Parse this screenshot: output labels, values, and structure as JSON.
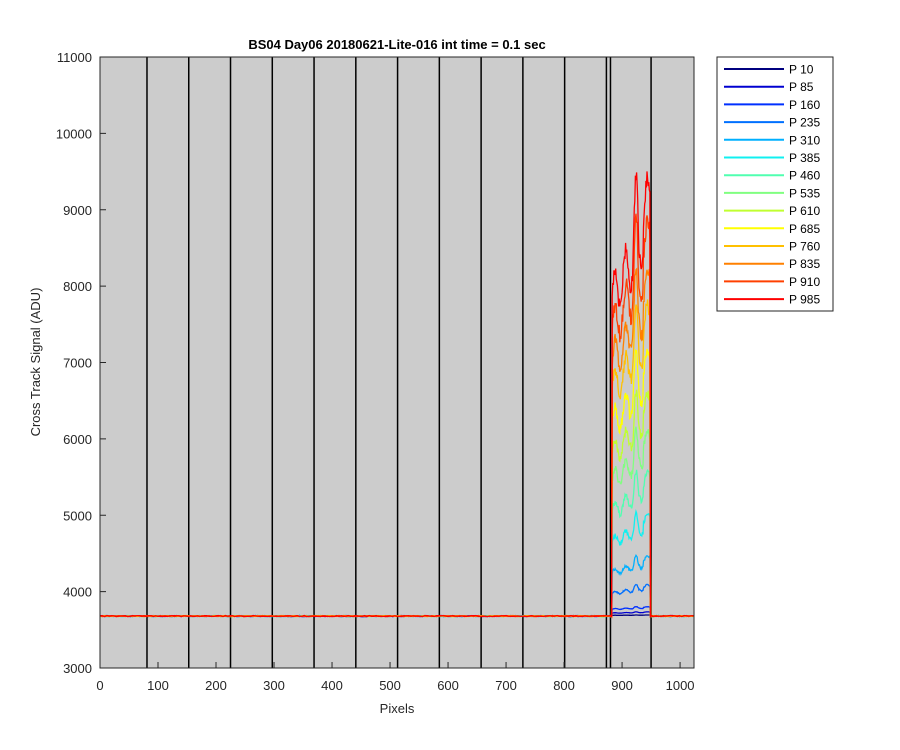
{
  "chart_data": {
    "type": "line",
    "title": "BS04 Day06 20180621-Lite-016 int time = 0.1 sec",
    "xlabel": "Pixels",
    "ylabel": "Cross Track Signal (ADU)",
    "xlim": [
      0,
      1024
    ],
    "ylim": [
      3000,
      11000
    ],
    "xticks": [
      0,
      100,
      200,
      300,
      400,
      500,
      600,
      700,
      800,
      900,
      1000
    ],
    "yticks": [
      3000,
      4000,
      5000,
      6000,
      7000,
      8000,
      9000,
      10000,
      11000
    ],
    "grid": "off",
    "background_color": "#cccccc",
    "legend_location": "outside-top-right",
    "segment_boundaries": [
      81,
      153,
      225,
      297,
      369,
      441,
      513,
      585,
      657,
      729,
      801,
      873,
      880,
      950
    ],
    "baseline": 3680,
    "signal_window": {
      "x_start": 883,
      "x_end": 948
    },
    "series": [
      {
        "name": "P 10",
        "color": "#00007f",
        "peak_level": 3690
      },
      {
        "name": "P 85",
        "color": "#0000d0",
        "peak_level": 3720
      },
      {
        "name": "P 160",
        "color": "#0030ff",
        "peak_level": 3770
      },
      {
        "name": "P 235",
        "color": "#0070ff",
        "peak_level": 3980
      },
      {
        "name": "P 310",
        "color": "#00b0ff",
        "peak_level": 4250
      },
      {
        "name": "P 385",
        "color": "#10f0f0",
        "peak_level": 4650
      },
      {
        "name": "P 460",
        "color": "#50ffb0",
        "peak_level": 5050
      },
      {
        "name": "P 535",
        "color": "#80ff80",
        "peak_level": 5450
      },
      {
        "name": "P 610",
        "color": "#c0ff30",
        "peak_level": 5800
      },
      {
        "name": "P 685",
        "color": "#ffff00",
        "peak_level": 6200
      },
      {
        "name": "P 760",
        "color": "#ffc000",
        "peak_level": 6650
      },
      {
        "name": "P 835",
        "color": "#ff8000",
        "peak_level": 7000
      },
      {
        "name": "P 910",
        "color": "#ff4000",
        "peak_level": 7450
      },
      {
        "name": "P 985",
        "color": "#ff0000",
        "peak_level": 7850
      }
    ]
  }
}
